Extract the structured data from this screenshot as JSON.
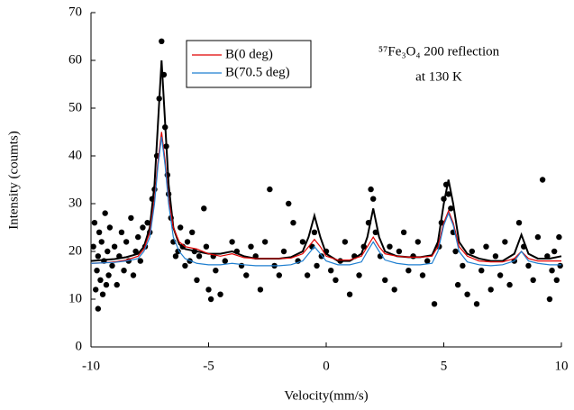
{
  "chart_data": {
    "type": "scatter",
    "xlabel": "Velocity(mm/s)",
    "ylabel": "Intensity (coumts)",
    "annotations": [
      "⁵⁷Fe₃O₄ 200 reflection",
      "at 130 K"
    ],
    "xlim": [
      -10,
      10
    ],
    "xticks": [
      -10,
      -5,
      0,
      5,
      10
    ],
    "ylim": [
      0,
      70
    ],
    "yticks": [
      0,
      10,
      20,
      30,
      40,
      50,
      60,
      70
    ],
    "grid": false,
    "series": [
      {
        "type": "scatter",
        "color": "#000000",
        "x": [
          -9.9,
          -9.85,
          -9.8,
          -9.75,
          -9.7,
          -9.7,
          -9.65,
          -9.6,
          -9.55,
          -9.5,
          -9.45,
          -9.4,
          -9.35,
          -9.3,
          -9.25,
          -9.2,
          -9.1,
          -9.0,
          -8.9,
          -8.8,
          -8.7,
          -8.6,
          -8.5,
          -8.4,
          -8.3,
          -8.2,
          -8.1,
          -8.0,
          -7.9,
          -7.8,
          -7.7,
          -7.6,
          -7.5,
          -7.4,
          -7.3,
          -7.2,
          -7.1,
          -7.0,
          -6.9,
          -6.85,
          -6.8,
          -6.75,
          -6.7,
          -6.6,
          -6.5,
          -6.4,
          -6.3,
          -6.2,
          -6.1,
          -6.0,
          -5.9,
          -5.8,
          -5.7,
          -5.6,
          -5.5,
          -5.4,
          -5.2,
          -5.1,
          -5.0,
          -4.9,
          -4.8,
          -4.7,
          -4.5,
          -4.3,
          -4.0,
          -3.8,
          -3.6,
          -3.4,
          -3.2,
          -3.0,
          -2.8,
          -2.6,
          -2.4,
          -2.2,
          -2.0,
          -1.8,
          -1.6,
          -1.4,
          -1.2,
          -1.0,
          -0.8,
          -0.6,
          -0.5,
          -0.4,
          -0.2,
          0.0,
          0.2,
          0.4,
          0.6,
          0.8,
          1.0,
          1.2,
          1.4,
          1.6,
          1.8,
          1.9,
          2.0,
          2.1,
          2.3,
          2.5,
          2.7,
          2.9,
          3.1,
          3.3,
          3.5,
          3.7,
          3.9,
          4.1,
          4.3,
          4.6,
          4.8,
          4.9,
          5.0,
          5.1,
          5.2,
          5.3,
          5.4,
          5.5,
          5.6,
          5.8,
          6.0,
          6.2,
          6.4,
          6.6,
          6.8,
          7.0,
          7.2,
          7.4,
          7.6,
          7.8,
          8.0,
          8.2,
          8.4,
          8.6,
          8.8,
          9.0,
          9.2,
          9.4,
          9.5,
          9.6,
          9.7,
          9.8,
          9.9,
          9.95
        ],
        "values": [
          21,
          26,
          12,
          16,
          8,
          19,
          24,
          14,
          22,
          11,
          18,
          28,
          13,
          20,
          15,
          25,
          17,
          21,
          13,
          19,
          24,
          16,
          22,
          18,
          27,
          15,
          20,
          23,
          18,
          25,
          21,
          26,
          24,
          31,
          33,
          40,
          52,
          64,
          57,
          46,
          42,
          36,
          32,
          27,
          22,
          19,
          20,
          25,
          21,
          17,
          22,
          18,
          24,
          20,
          14,
          19,
          29,
          21,
          12,
          10,
          19,
          16,
          11,
          18,
          22,
          20,
          17,
          15,
          21,
          19,
          12,
          22,
          33,
          17,
          15,
          20,
          30,
          26,
          18,
          22,
          15,
          21,
          24,
          17,
          19,
          20,
          16,
          14,
          18,
          22,
          11,
          19,
          15,
          21,
          26,
          33,
          31,
          24,
          19,
          14,
          21,
          12,
          20,
          24,
          16,
          19,
          22,
          15,
          18,
          9,
          21,
          26,
          31,
          34,
          32,
          29,
          24,
          20,
          13,
          17,
          11,
          20,
          9,
          16,
          21,
          12,
          19,
          15,
          22,
          13,
          18,
          26,
          21,
          17,
          14,
          23,
          35,
          19,
          10,
          16,
          20,
          14,
          23,
          17
        ]
      },
      {
        "type": "line",
        "color": "#000000",
        "x": [
          -10,
          -9.5,
          -9,
          -8.5,
          -8,
          -7.75,
          -7.5,
          -7.3,
          -7.15,
          -7,
          -6.85,
          -6.7,
          -6.5,
          -6.25,
          -6,
          -5.5,
          -5,
          -4.5,
          -4,
          -3.5,
          -3,
          -2.5,
          -2,
          -1.5,
          -1,
          -0.75,
          -0.5,
          -0.25,
          0,
          0.5,
          1,
          1.5,
          1.75,
          2,
          2.25,
          2.5,
          3,
          3.5,
          4,
          4.5,
          4.75,
          5,
          5.2,
          5.4,
          5.65,
          6,
          6.5,
          7,
          7.5,
          8,
          8.3,
          8.6,
          9,
          9.5,
          10
        ],
        "values": [
          18,
          18.2,
          18.4,
          18.8,
          19.5,
          21,
          25,
          34,
          47,
          60,
          47,
          34,
          25,
          21.5,
          20.5,
          20,
          19.5,
          19.5,
          20,
          19,
          18.5,
          18.5,
          18.5,
          18.8,
          20,
          23,
          27.5,
          23,
          19.5,
          18,
          18,
          19.5,
          23,
          29,
          23,
          20,
          19,
          18.8,
          18.8,
          19.2,
          22,
          30,
          35,
          30,
          22,
          19.5,
          18.5,
          18,
          18,
          19.5,
          23.5,
          19.5,
          18.5,
          18.5,
          19
        ]
      },
      {
        "type": "line",
        "name": "B(0 deg)",
        "color": "#e00000",
        "x": [
          -10,
          -9.5,
          -9,
          -8.5,
          -8,
          -7.75,
          -7.5,
          -7.3,
          -7.15,
          -7,
          -6.85,
          -6.7,
          -6.5,
          -6.25,
          -6,
          -5.5,
          -5,
          -4.5,
          -4,
          -3.5,
          -3,
          -2.5,
          -2,
          -1.5,
          -1,
          -0.75,
          -0.5,
          -0.25,
          0,
          0.5,
          1,
          1.5,
          1.75,
          2,
          2.25,
          2.5,
          3,
          3.5,
          4,
          4.5,
          4.75,
          5,
          5.2,
          5.4,
          5.65,
          6,
          6.5,
          7,
          7.5,
          8,
          8.3,
          8.6,
          9,
          9.5,
          10
        ],
        "values": [
          17.5,
          17.6,
          17.8,
          18.2,
          19,
          20.5,
          24,
          31,
          39,
          45,
          39,
          31,
          25,
          22,
          21,
          20.5,
          19.5,
          19,
          19.5,
          18.7,
          18.5,
          18.5,
          18.5,
          18.6,
          19.5,
          21,
          22.5,
          21,
          19,
          18.2,
          18.2,
          19,
          21,
          23,
          21,
          19.5,
          19,
          18.8,
          18.8,
          19,
          21,
          26,
          28.5,
          26,
          21,
          19,
          18,
          17.8,
          17.8,
          18.5,
          20,
          18.5,
          18,
          18,
          18
        ]
      },
      {
        "type": "line",
        "name": "B(70.5 deg)",
        "color": "#1f7fd0",
        "x": [
          -10,
          -9.5,
          -9,
          -8.5,
          -8,
          -7.75,
          -7.5,
          -7.3,
          -7.15,
          -7,
          -6.85,
          -6.7,
          -6.5,
          -6.25,
          -6,
          -5.5,
          -5,
          -4.5,
          -4,
          -3.5,
          -3,
          -2.5,
          -2,
          -1.5,
          -1,
          -0.75,
          -0.5,
          -0.25,
          0,
          0.5,
          1,
          1.5,
          1.75,
          2,
          2.25,
          2.5,
          3,
          3.5,
          4,
          4.5,
          4.75,
          5,
          5.2,
          5.4,
          5.65,
          6,
          6.5,
          7,
          7.5,
          8,
          8.3,
          8.6,
          9,
          9.5,
          10
        ],
        "values": [
          17.5,
          17.6,
          17.7,
          18,
          18.5,
          20,
          23,
          30,
          38,
          44,
          38,
          30,
          23,
          20,
          18.5,
          17.5,
          17.2,
          17.2,
          17.5,
          17.2,
          17,
          17,
          17,
          17.2,
          18,
          19.5,
          21,
          19.5,
          18,
          17.2,
          17.2,
          17.8,
          20,
          22,
          20,
          18.2,
          17.5,
          17.2,
          17.2,
          17.5,
          20,
          25.5,
          28,
          25.5,
          20,
          17.8,
          17.2,
          17,
          17.2,
          18,
          20,
          18,
          17.5,
          17.2,
          17.2
        ]
      }
    ]
  }
}
